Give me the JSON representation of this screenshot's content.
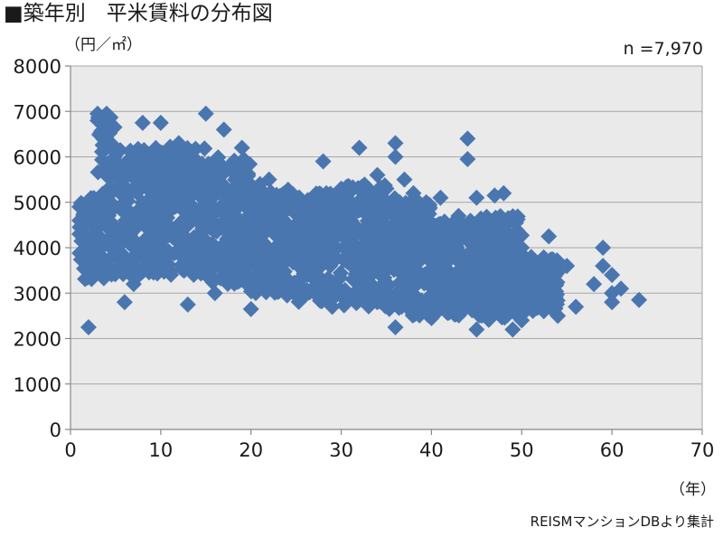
{
  "title": "■築年別　平米賃料の分布図",
  "y_unit": "（円／㎡）",
  "n_label": "n =7,970",
  "x_unit": "（年）",
  "source": "REISMマンションDBより集計",
  "colors": {
    "marker": "#4a76b0",
    "plot_bg": "#eaeaea",
    "grid": "#a6a6a6",
    "axis": "#888888"
  },
  "chart_data": {
    "type": "scatter",
    "title": "築年別　平米賃料の分布図",
    "xlabel": "（年）",
    "ylabel": "（円／㎡）",
    "xlim": [
      0,
      70
    ],
    "ylim": [
      0,
      8000
    ],
    "x_ticks": [
      0,
      10,
      20,
      30,
      40,
      50,
      60,
      70
    ],
    "y_ticks": [
      0,
      1000,
      2000,
      3000,
      4000,
      5000,
      6000,
      7000,
      8000
    ],
    "grid": "horizontal",
    "marker": "diamond",
    "total_count": 7970,
    "point_cloud_note": "dense cloud approximated by per-age rent ranges",
    "density_by_age": [
      {
        "x_from": 1,
        "x_to": 3,
        "y_min": 3300,
        "y_max": 5100
      },
      {
        "x_from": 3,
        "x_to": 5,
        "y_min": 3300,
        "y_max": 6900
      },
      {
        "x_from": 5,
        "x_to": 10,
        "y_min": 3400,
        "y_max": 6200
      },
      {
        "x_from": 10,
        "x_to": 15,
        "y_min": 3400,
        "y_max": 6300
      },
      {
        "x_from": 15,
        "x_to": 20,
        "y_min": 3200,
        "y_max": 6000
      },
      {
        "x_from": 20,
        "x_to": 25,
        "y_min": 3000,
        "y_max": 5300
      },
      {
        "x_from": 25,
        "x_to": 30,
        "y_min": 2800,
        "y_max": 5200
      },
      {
        "x_from": 30,
        "x_to": 35,
        "y_min": 2700,
        "y_max": 5400
      },
      {
        "x_from": 35,
        "x_to": 40,
        "y_min": 2500,
        "y_max": 5100
      },
      {
        "x_from": 40,
        "x_to": 45,
        "y_min": 2500,
        "y_max": 4600
      },
      {
        "x_from": 45,
        "x_to": 50,
        "y_min": 2400,
        "y_max": 4700
      },
      {
        "x_from": 50,
        "x_to": 54,
        "y_min": 2600,
        "y_max": 3800
      }
    ],
    "points": [
      [
        2,
        2250
      ],
      [
        3,
        6950
      ],
      [
        4,
        6950
      ],
      [
        6,
        2800
      ],
      [
        7,
        3200
      ],
      [
        8,
        6750
      ],
      [
        10,
        6750
      ],
      [
        13,
        2750
      ],
      [
        15,
        6950
      ],
      [
        16,
        3000
      ],
      [
        19,
        6200
      ],
      [
        20,
        2650
      ],
      [
        17,
        6600
      ],
      [
        12,
        6300
      ],
      [
        28,
        5900
      ],
      [
        32,
        6200
      ],
      [
        36,
        6300
      ],
      [
        36,
        6000
      ],
      [
        38,
        5200
      ],
      [
        41,
        5100
      ],
      [
        44,
        6400
      ],
      [
        44,
        5950
      ],
      [
        45,
        5100
      ],
      [
        48,
        5200
      ],
      [
        47,
        5150
      ],
      [
        45,
        2200
      ],
      [
        49,
        2200
      ],
      [
        50,
        2400
      ],
      [
        53,
        4250
      ],
      [
        54,
        2500
      ],
      [
        55,
        3600
      ],
      [
        56,
        2700
      ],
      [
        59,
        4000
      ],
      [
        59,
        3600
      ],
      [
        60,
        3400
      ],
      [
        60,
        3000
      ],
      [
        60,
        2800
      ],
      [
        58,
        3200
      ],
      [
        61,
        3100
      ],
      [
        63,
        2850
      ],
      [
        52,
        3100
      ],
      [
        51,
        2900
      ],
      [
        53,
        3300
      ],
      [
        36,
        2250
      ],
      [
        40,
        2450
      ],
      [
        29,
        2700
      ],
      [
        24,
        2950
      ],
      [
        23,
        3100
      ],
      [
        26,
        2950
      ],
      [
        34,
        5600
      ],
      [
        33,
        5300
      ],
      [
        30,
        5300
      ],
      [
        27,
        5000
      ],
      [
        25,
        4800
      ],
      [
        21,
        5400
      ],
      [
        22,
        5500
      ],
      [
        18,
        5800
      ],
      [
        14,
        5900
      ],
      [
        11,
        5800
      ],
      [
        9,
        6000
      ],
      [
        5,
        5900
      ],
      [
        4,
        6400
      ],
      [
        3,
        6800
      ],
      [
        1,
        4600
      ],
      [
        1,
        4300
      ],
      [
        1,
        4900
      ],
      [
        42,
        4400
      ],
      [
        43,
        4700
      ],
      [
        46,
        4500
      ],
      [
        48,
        4300
      ],
      [
        50,
        4000
      ],
      [
        51,
        3700
      ],
      [
        39,
        4900
      ],
      [
        37,
        5500
      ],
      [
        35,
        5300
      ],
      [
        31,
        4900
      ]
    ]
  }
}
